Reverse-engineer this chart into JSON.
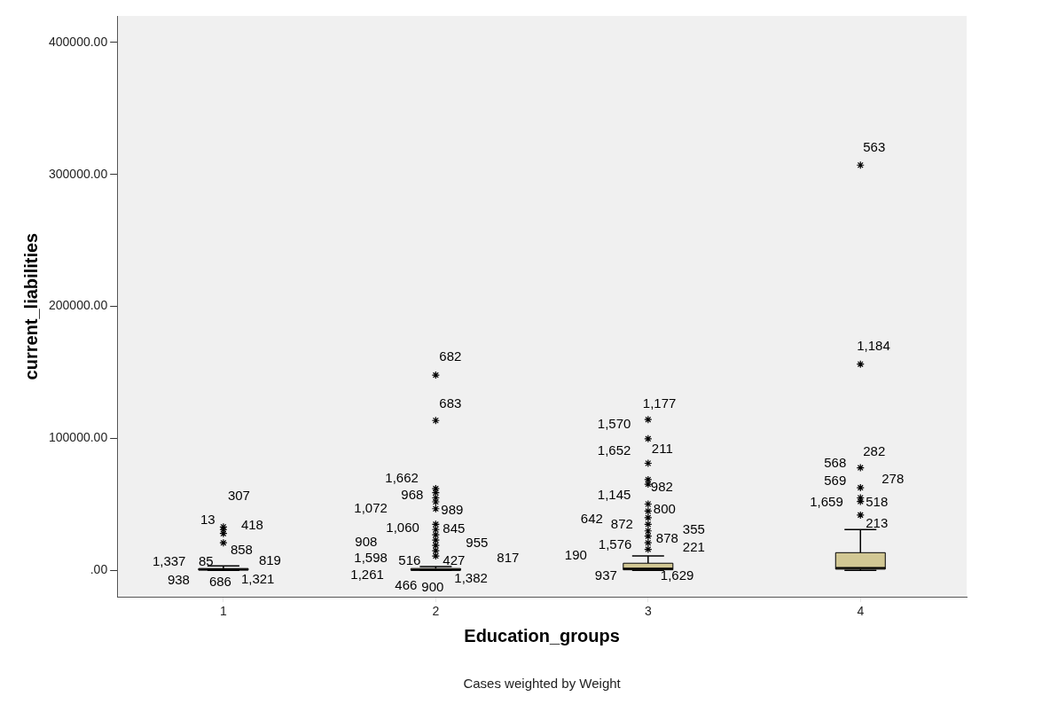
{
  "chart_data": {
    "type": "box",
    "xlabel": "Education_groups",
    "ylabel": "current_liabilities",
    "categories": [
      "1",
      "2",
      "3",
      "4"
    ],
    "color": "#d2c894",
    "boxes": [
      {
        "low": 100,
        "q1": 300,
        "median": 800,
        "q3": 1500,
        "high": 3500,
        "outliers": [
          33000,
          31000,
          28000,
          21000
        ]
      },
      {
        "low": 100,
        "q1": 200,
        "median": 500,
        "q3": 1500,
        "high": 3000,
        "outliers": [
          148000,
          113600,
          62000,
          59000,
          55000,
          52000,
          46800,
          35000,
          31000,
          27000,
          23000,
          19000,
          15000,
          11000
        ]
      },
      {
        "low": 100,
        "q1": 500,
        "median": 1500,
        "q3": 5500,
        "high": 11000,
        "outliers": [
          114300,
          99800,
          81200,
          68800,
          65400,
          50300,
          45000,
          40000,
          35000,
          30000,
          26000,
          21000,
          16000
        ]
      },
      {
        "low": 100,
        "q1": 1000,
        "median": 2000,
        "q3": 13500,
        "high": 31000,
        "outliers": [
          307000,
          156300,
          77800,
          62700,
          55000,
          52300,
          42000
        ]
      }
    ],
    "ylim": [
      -20000,
      420000
    ],
    "yticks": [
      {
        "value": 0,
        "label": ".00"
      },
      {
        "value": 100000,
        "label": "100000.00"
      },
      {
        "value": 200000,
        "label": "200000.00"
      },
      {
        "value": 300000,
        "label": "300000.00"
      },
      {
        "value": 400000,
        "label": "400000.00"
      }
    ],
    "grid": false,
    "legend": false,
    "marker": "star",
    "annotations": [
      "Cases weighted by Weight",
      "307",
      "13",
      "418",
      "858",
      "1,337",
      "85",
      "819",
      "938",
      "686",
      "1,321",
      "682",
      "683",
      "1,662",
      "968",
      "1,072",
      "989",
      "1,060",
      "845",
      "908",
      "955",
      "1,598",
      "516",
      "427",
      "817",
      "1,261",
      "466",
      "900",
      "1,382",
      "1,177",
      "1,570",
      "1,652",
      "211",
      "982",
      "1,145",
      "800",
      "642",
      "872",
      "355",
      "878",
      "1,576",
      "221",
      "190",
      "937",
      "1,629",
      "563",
      "1,184",
      "282",
      "568",
      "569",
      "278",
      "1,659",
      "518",
      "213"
    ]
  }
}
